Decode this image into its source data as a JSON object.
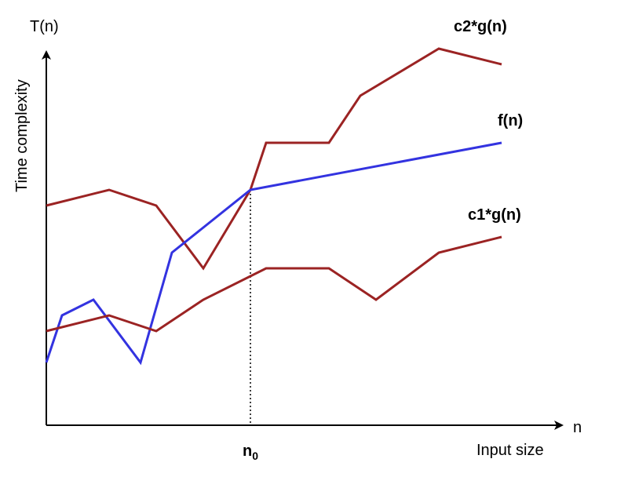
{
  "chart_data": {
    "type": "line",
    "title": "",
    "y_axis_symbol": "T(n)",
    "y_axis_label": "Time complexity",
    "x_axis_symbol": "n",
    "x_axis_label": "Input size",
    "marker": {
      "base": "n",
      "sub": "0",
      "x": 13
    },
    "xlim": [
      0,
      33
    ],
    "ylim": [
      0,
      25
    ],
    "grid": false,
    "series": [
      {
        "name": "c2*g(n)",
        "color": "#9b2323",
        "points": [
          [
            0,
            14
          ],
          [
            4,
            15
          ],
          [
            7,
            14
          ],
          [
            10,
            10
          ],
          [
            13,
            15
          ],
          [
            14,
            18
          ],
          [
            18,
            18
          ],
          [
            20,
            21
          ],
          [
            25,
            24
          ],
          [
            29,
            23
          ]
        ]
      },
      {
        "name": "f(n)",
        "color": "#3333e0",
        "points": [
          [
            0,
            4
          ],
          [
            1,
            7
          ],
          [
            3,
            8
          ],
          [
            6,
            4
          ],
          [
            8,
            11
          ],
          [
            13,
            15
          ],
          [
            29,
            18
          ]
        ]
      },
      {
        "name": "c1*g(n)",
        "color": "#9b2323",
        "points": [
          [
            0,
            6
          ],
          [
            4,
            7
          ],
          [
            7,
            6
          ],
          [
            10,
            8
          ],
          [
            14,
            10
          ],
          [
            18,
            10
          ],
          [
            21,
            8
          ],
          [
            25,
            11
          ],
          [
            29,
            12
          ]
        ]
      }
    ]
  }
}
